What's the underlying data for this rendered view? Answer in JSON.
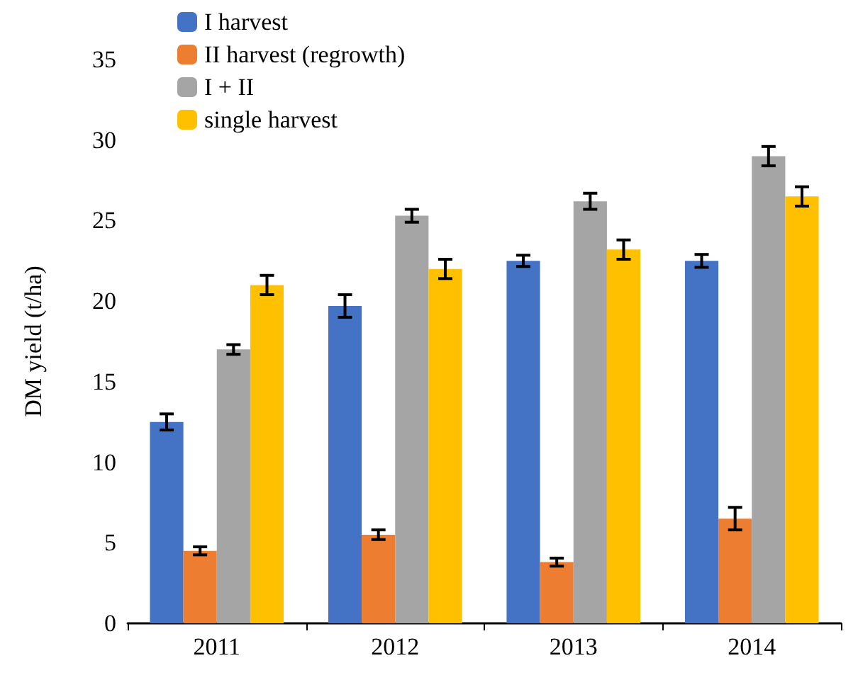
{
  "chart_data": {
    "type": "bar",
    "ylabel": "DM yield (t/ha)",
    "categories": [
      "2011",
      "2012",
      "2013",
      "2014"
    ],
    "series": [
      {
        "name": "I harvest",
        "color": "#4472c4",
        "values": [
          12.5,
          19.7,
          22.5,
          22.5
        ],
        "errors": [
          0.5,
          0.7,
          0.35,
          0.4
        ]
      },
      {
        "name": "II harvest (regrowth)",
        "color": "#ed7d31",
        "values": [
          4.5,
          5.5,
          3.8,
          6.5
        ],
        "errors": [
          0.25,
          0.3,
          0.25,
          0.7
        ]
      },
      {
        "name": "I + II",
        "color": "#a5a5a5",
        "values": [
          17,
          25.3,
          26.2,
          29
        ],
        "errors": [
          0.3,
          0.4,
          0.5,
          0.6
        ]
      },
      {
        "name": "single harvest",
        "color": "#ffc000",
        "values": [
          21,
          22,
          23.2,
          26.5
        ],
        "errors": [
          0.6,
          0.6,
          0.6,
          0.6
        ]
      }
    ],
    "ylim": [
      0,
      35
    ],
    "yticks": [
      0,
      5,
      10,
      15,
      20,
      25,
      30,
      35
    ],
    "grid": false,
    "legend": "top left"
  }
}
